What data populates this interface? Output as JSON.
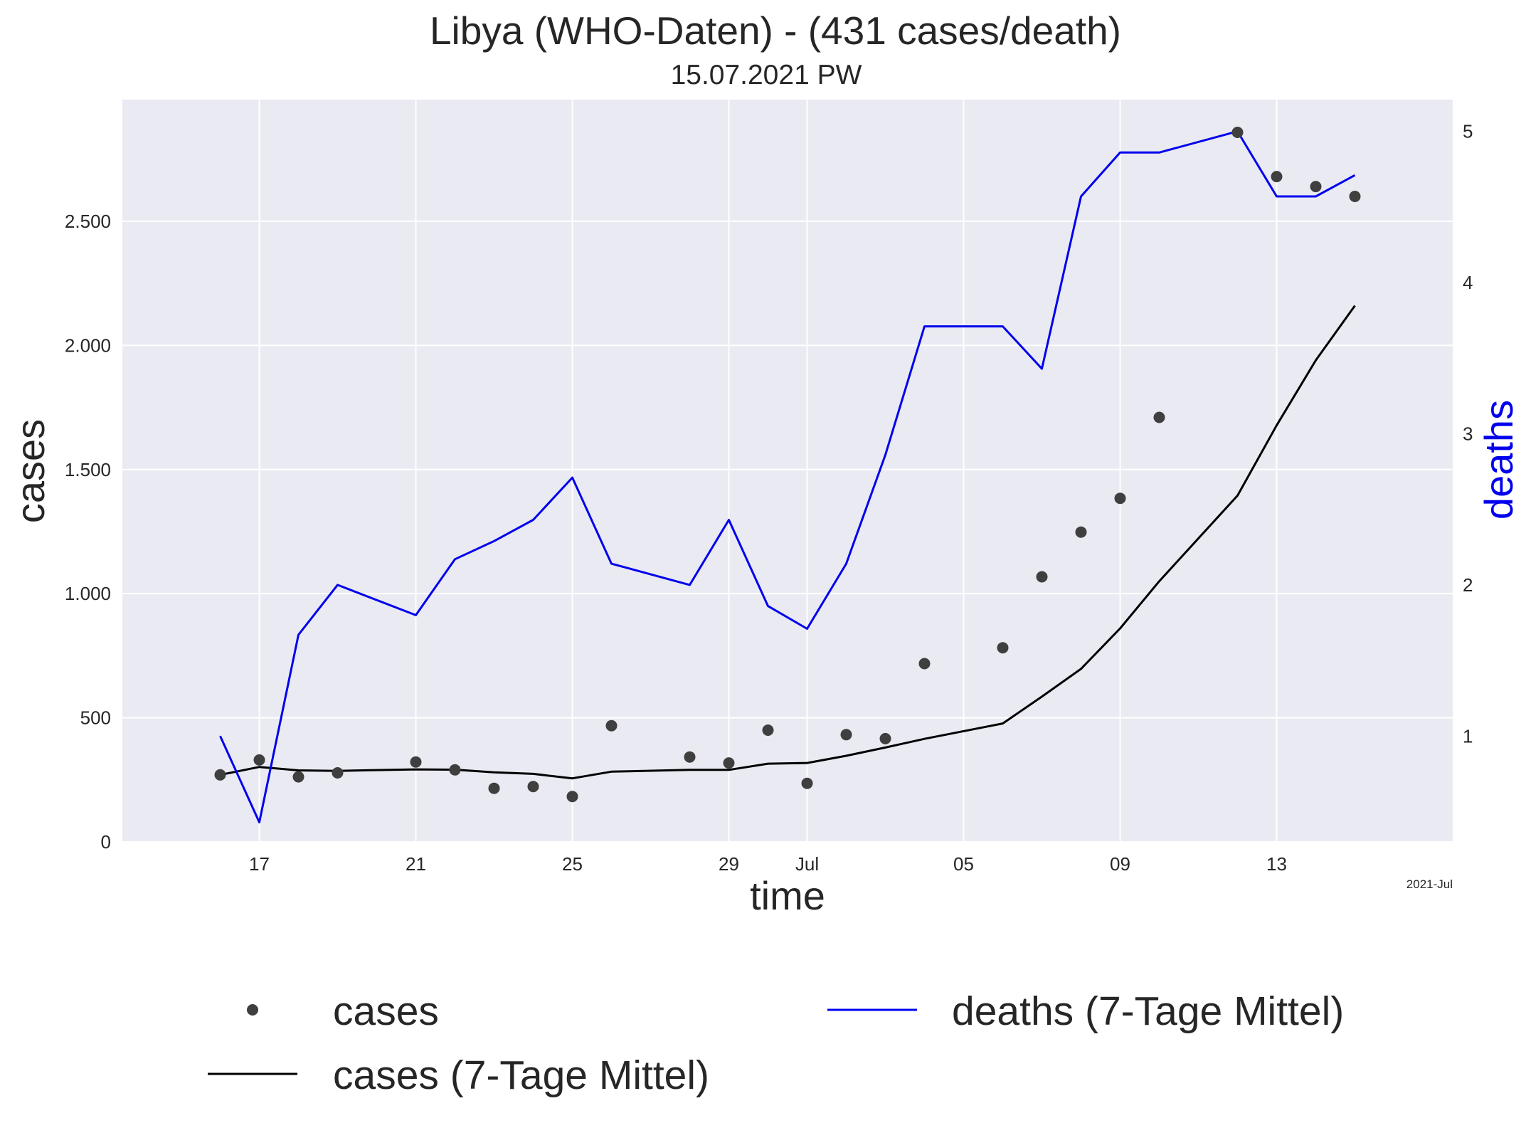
{
  "chart_data": {
    "type": "line",
    "title": "Libya (WHO-Daten) - (431 cases/death)",
    "subtitle": "15.07.2021 PW",
    "xlabel": "time",
    "ylabel": "cases",
    "y2label": "deaths",
    "x_corner_label": "2021-Jul",
    "x_range": [
      "2021-06-13T12:00",
      "2021-07-17T12:00"
    ],
    "ylim": [
      0,
      2990
    ],
    "y2lim": [
      0.3,
      5.21
    ],
    "grid": true,
    "x_ticks": [
      {
        "date": "2021-06-17",
        "label": "17"
      },
      {
        "date": "2021-06-21",
        "label": "21"
      },
      {
        "date": "2021-06-25",
        "label": "25"
      },
      {
        "date": "2021-06-29",
        "label": "29"
      },
      {
        "date": "2021-07-01",
        "label": "Jul"
      },
      {
        "date": "2021-07-05",
        "label": "05"
      },
      {
        "date": "2021-07-09",
        "label": "09"
      },
      {
        "date": "2021-07-13",
        "label": "13"
      }
    ],
    "y_ticks": [
      {
        "value": 0,
        "label": "0"
      },
      {
        "value": 500,
        "label": "500"
      },
      {
        "value": 1000,
        "label": "1.000"
      },
      {
        "value": 1500,
        "label": "1.500"
      },
      {
        "value": 2000,
        "label": "2.000"
      },
      {
        "value": 2500,
        "label": "2.500"
      }
    ],
    "y2_ticks": [
      {
        "value": 1,
        "label": "1"
      },
      {
        "value": 2,
        "label": "2"
      },
      {
        "value": 3,
        "label": "3"
      },
      {
        "value": 4,
        "label": "4"
      },
      {
        "value": 5,
        "label": "5"
      }
    ],
    "legend": {
      "placement": "bottom",
      "entries": [
        {
          "label": "cases",
          "style": "marker",
          "color": "#3f3f3f"
        },
        {
          "label": "cases (7-Tage Mittel)",
          "style": "line",
          "color": "#000000"
        },
        {
          "label": "deaths (7-Tage Mittel)",
          "style": "line",
          "color": "#0000ee"
        }
      ]
    },
    "colors": {
      "plot_bg": "#eaeaf2",
      "grid": "#ffffff",
      "cases_marker": "#3f3f3f",
      "cases_avg": "#000000",
      "deaths_avg": "#0000ee",
      "y2_label": "#0000ee"
    },
    "series": [
      {
        "name": "cases",
        "axis": "left",
        "style": "marker",
        "points": [
          [
            "2021-06-16",
            270
          ],
          [
            "2021-06-17",
            330
          ],
          [
            "2021-06-18",
            262
          ],
          [
            "2021-06-19",
            278
          ],
          [
            "2021-06-21",
            322
          ],
          [
            "2021-06-22",
            290
          ],
          [
            "2021-06-23",
            216
          ],
          [
            "2021-06-24",
            223
          ],
          [
            "2021-06-25",
            183
          ],
          [
            "2021-06-26",
            468
          ],
          [
            "2021-06-28",
            342
          ],
          [
            "2021-06-29",
            318
          ],
          [
            "2021-06-30",
            450
          ],
          [
            "2021-07-01",
            236
          ],
          [
            "2021-07-02",
            432
          ],
          [
            "2021-07-03",
            416
          ],
          [
            "2021-07-04",
            718
          ],
          [
            "2021-07-06",
            782
          ],
          [
            "2021-07-07",
            1068
          ],
          [
            "2021-07-08",
            1248
          ],
          [
            "2021-07-09",
            1384
          ],
          [
            "2021-07-10",
            1710
          ],
          [
            "2021-07-12",
            2858
          ],
          [
            "2021-07-13",
            2680
          ],
          [
            "2021-07-14",
            2640
          ],
          [
            "2021-07-15",
            2600
          ]
        ]
      },
      {
        "name": "cases (7-Tage Mittel)",
        "axis": "left",
        "style": "line",
        "points": [
          [
            "2021-06-16",
            270
          ],
          [
            "2021-06-17",
            302
          ],
          [
            "2021-06-18",
            288
          ],
          [
            "2021-06-19",
            286
          ],
          [
            "2021-06-21",
            292
          ],
          [
            "2021-06-22",
            291
          ],
          [
            "2021-06-23",
            280
          ],
          [
            "2021-06-24",
            274
          ],
          [
            "2021-06-25",
            256
          ],
          [
            "2021-06-26",
            283
          ],
          [
            "2021-06-28",
            290
          ],
          [
            "2021-06-29",
            290
          ],
          [
            "2021-06-30",
            315
          ],
          [
            "2021-07-01",
            318
          ],
          [
            "2021-07-02",
            347
          ],
          [
            "2021-07-03",
            380
          ],
          [
            "2021-07-04",
            415
          ],
          [
            "2021-07-06",
            477
          ],
          [
            "2021-07-07",
            585
          ],
          [
            "2021-07-08",
            697
          ],
          [
            "2021-07-09",
            860
          ],
          [
            "2021-07-10",
            1050
          ],
          [
            "2021-07-12",
            1395
          ],
          [
            "2021-07-13",
            1678
          ],
          [
            "2021-07-14",
            1940
          ],
          [
            "2021-07-15",
            2160
          ]
        ]
      },
      {
        "name": "deaths (7-Tage Mittel)",
        "axis": "right",
        "style": "line",
        "points": [
          [
            "2021-06-16",
            1.0
          ],
          [
            "2021-06-17",
            0.43
          ],
          [
            "2021-06-18",
            1.67
          ],
          [
            "2021-06-19",
            2.0
          ],
          [
            "2021-06-21",
            1.8
          ],
          [
            "2021-06-22",
            2.17
          ],
          [
            "2021-06-23",
            2.29
          ],
          [
            "2021-06-24",
            2.43
          ],
          [
            "2021-06-25",
            2.71
          ],
          [
            "2021-06-26",
            2.14
          ],
          [
            "2021-06-28",
            2.0
          ],
          [
            "2021-06-29",
            2.43
          ],
          [
            "2021-06-30",
            1.86
          ],
          [
            "2021-07-01",
            1.71
          ],
          [
            "2021-07-02",
            2.14
          ],
          [
            "2021-07-03",
            2.86
          ],
          [
            "2021-07-04",
            3.71
          ],
          [
            "2021-07-06",
            3.71
          ],
          [
            "2021-07-07",
            3.43
          ],
          [
            "2021-07-08",
            4.57
          ],
          [
            "2021-07-09",
            4.86
          ],
          [
            "2021-07-10",
            4.86
          ],
          [
            "2021-07-12",
            5.0
          ],
          [
            "2021-07-13",
            4.57
          ],
          [
            "2021-07-14",
            4.57
          ],
          [
            "2021-07-15",
            4.71
          ]
        ]
      }
    ]
  }
}
